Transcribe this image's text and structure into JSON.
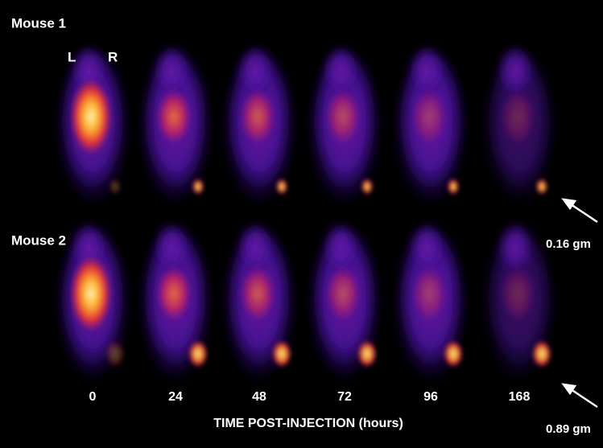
{
  "rows": [
    {
      "label": "Mouse 1"
    },
    {
      "label": "Mouse 2"
    }
  ],
  "side_labels": {
    "left": "L",
    "right": "R"
  },
  "time_labels": [
    "0",
    "24",
    "48",
    "72",
    "96",
    "168"
  ],
  "axis_label": "TIME POST-INJECTION (hours)",
  "tumor_labels": [
    "0.16 gm",
    "0.89 gm"
  ]
}
